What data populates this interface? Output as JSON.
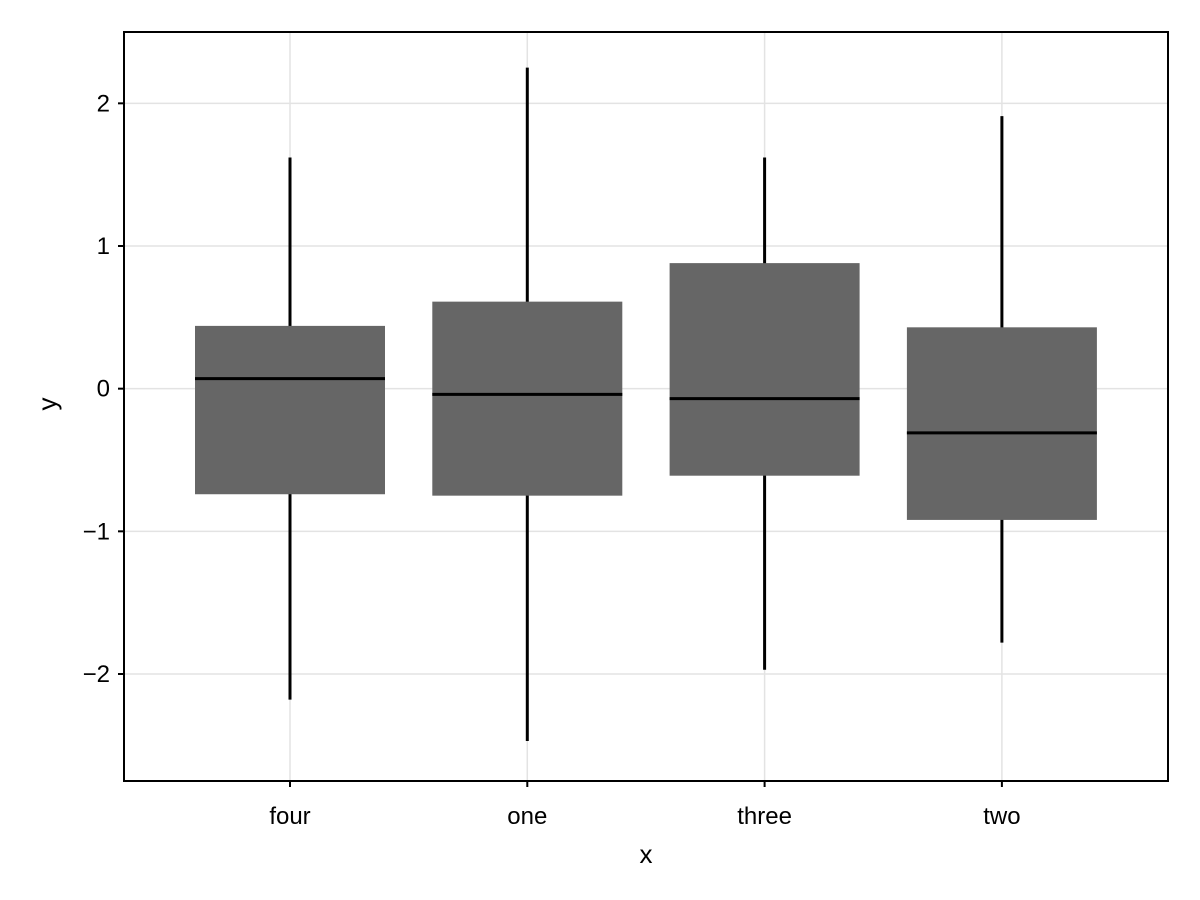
{
  "chart_data": {
    "type": "box",
    "xlabel": "x",
    "ylabel": "y",
    "ylim": [
      -2.75,
      2.5
    ],
    "yticks": [
      -2,
      -1,
      0,
      1,
      2
    ],
    "ytick_labels": [
      "−2",
      "−1",
      "0",
      "1",
      "2"
    ],
    "categories": [
      "four",
      "one",
      "three",
      "two"
    ],
    "boxes": [
      {
        "category": "four",
        "whisker_low": -2.18,
        "q1": -0.74,
        "median": 0.07,
        "q3": 0.44,
        "whisker_high": 1.62
      },
      {
        "category": "one",
        "whisker_low": -2.47,
        "q1": -0.75,
        "median": -0.04,
        "q3": 0.61,
        "whisker_high": 2.25
      },
      {
        "category": "three",
        "whisker_low": -1.97,
        "q1": -0.61,
        "median": -0.07,
        "q3": 0.88,
        "whisker_high": 1.62
      },
      {
        "category": "two",
        "whisker_low": -1.78,
        "q1": -0.92,
        "median": -0.31,
        "q3": 0.43,
        "whisker_high": 1.91
      }
    ],
    "grid": true,
    "box_color": "#666666"
  }
}
